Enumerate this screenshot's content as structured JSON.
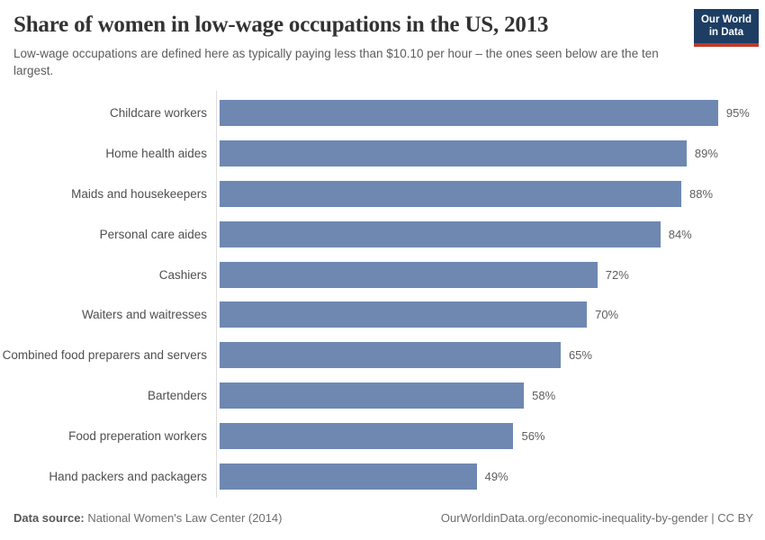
{
  "header": {
    "title": "Share of women in low-wage occupations in the US, 2013",
    "subtitle": "Low-wage occupations are defined here as typically paying less than $10.10 per hour – the ones seen below are the ten largest."
  },
  "logo": {
    "line1": "Our World",
    "line2": "in Data",
    "bg_color": "#1d3d63",
    "accent_color": "#c0392b"
  },
  "chart_data": {
    "type": "bar",
    "orientation": "horizontal",
    "title": "Share of women in low-wage occupations in the US, 2013",
    "categories": [
      "Childcare workers",
      "Home health aides",
      "Maids and housekeepers",
      "Personal care aides",
      "Cashiers",
      "Waiters and waitresses",
      "Combined food preparers and servers",
      "Bartenders",
      "Food preperation workers",
      "Hand packers and packagers"
    ],
    "values": [
      95,
      89,
      88,
      84,
      72,
      70,
      65,
      58,
      56,
      49
    ],
    "value_labels": [
      "95%",
      "89%",
      "88%",
      "84%",
      "72%",
      "70%",
      "65%",
      "58%",
      "56%",
      "49%"
    ],
    "unit": "%",
    "xlim": [
      0,
      100
    ],
    "bar_color": "#6e88b2",
    "axis_color": "#dddddd",
    "grid": false,
    "legend": "none",
    "value_labels_shown": true
  },
  "footer": {
    "source_label": "Data source:",
    "source_text": " National Women's Law Center (2014)",
    "link_text": "OurWorldinData.org/economic-inequality-by-gender | CC BY"
  }
}
